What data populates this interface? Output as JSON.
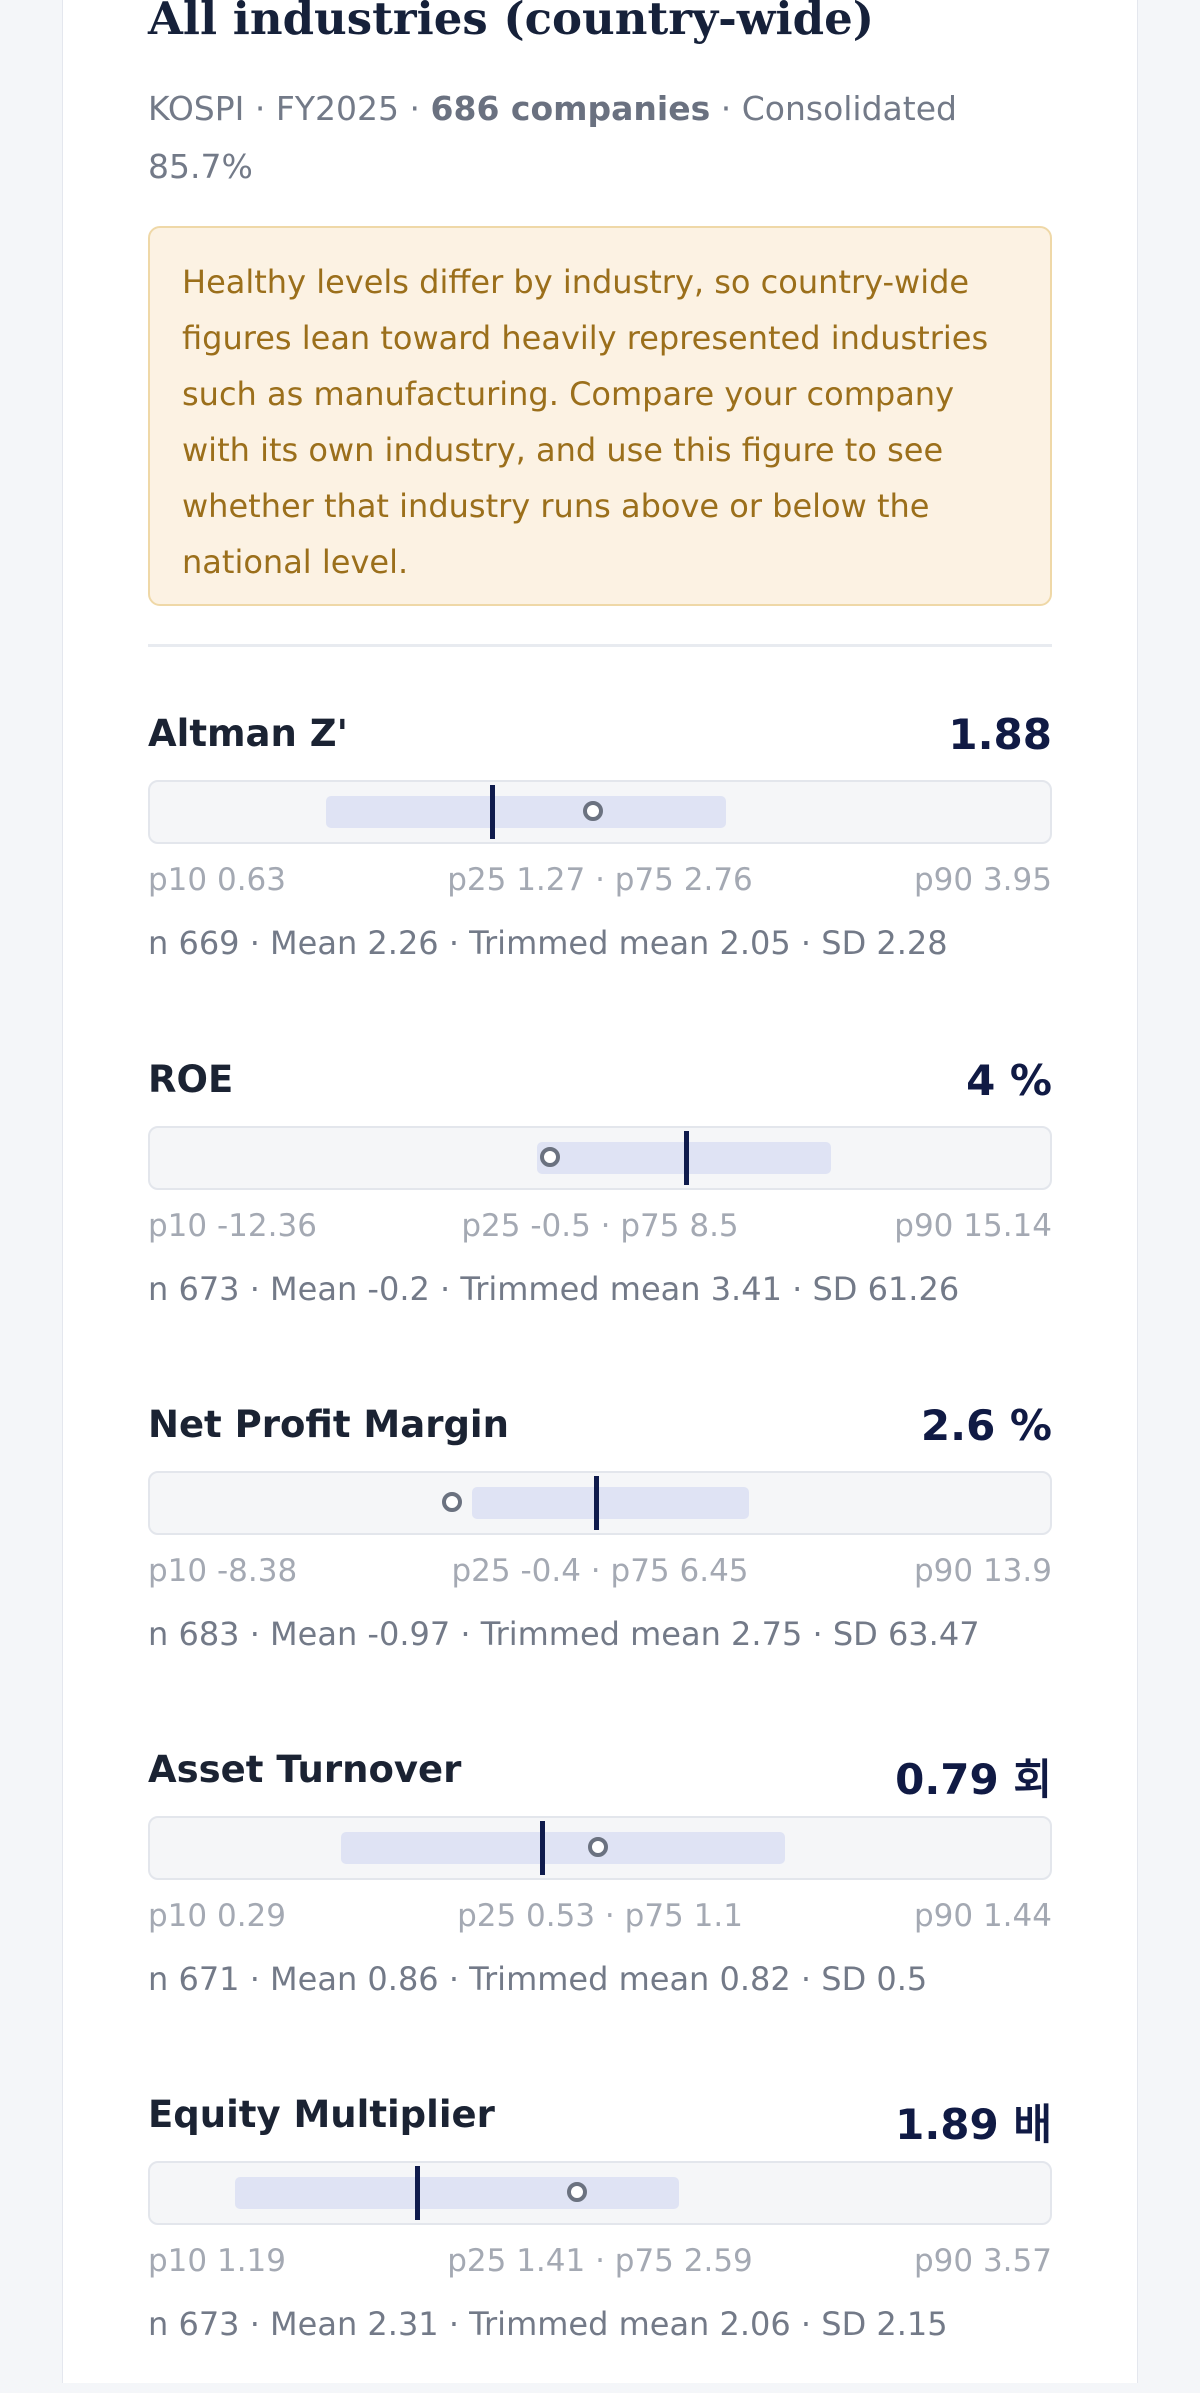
{
  "header": {
    "title": "All industries (country-wide)",
    "market": "KOSPI",
    "fiscal_year": "FY2025",
    "companies": "686 companies",
    "basis": "Consolidated",
    "coverage": "85.7%",
    "separator": "·"
  },
  "notice": {
    "text": "Healthy levels differ by industry, so country-wide figures lean toward heavily represented industries such as manufacturing. Compare your company with its own industry, and use this figure to see whether that industry runs above or below the national level."
  },
  "colors": {
    "accent_dark": "#0f1b4d",
    "iqr_fill": "#dfe3f4",
    "notice_bg": "#fcf2e3",
    "notice_text": "#9b6f1b"
  },
  "metrics": [
    {
      "name": "Altman Z'",
      "value_text": "1.88",
      "p10": "p10 0.63",
      "iqr": "p25 1.27 · p75 2.76",
      "p90": "p90 3.95",
      "stats": "n 669 · Mean 2.26 · Trimmed mean 2.05 · SD 2.28",
      "scale": {
        "iqr_start": 0.195,
        "iqr_end": 0.64,
        "median": 0.38,
        "mean": 0.49
      }
    },
    {
      "name": "ROE",
      "value_text": "4 %",
      "p10": "p10 -12.36",
      "iqr": "p25 -0.5 · p75 8.5",
      "p90": "p90 15.14",
      "stats": "n 673 · Mean -0.2 · Trimmed mean 3.41 · SD 61.26",
      "scale": {
        "iqr_start": 0.43,
        "iqr_end": 0.757,
        "median": 0.596,
        "mean": 0.442
      }
    },
    {
      "name": "Net Profit Margin",
      "value_text": "2.6 %",
      "p10": "p10 -8.38",
      "iqr": "p25 -0.4 · p75 6.45",
      "p90": "p90 13.9",
      "stats": "n 683 · Mean -0.97 · Trimmed mean 2.75 · SD 63.47",
      "scale": {
        "iqr_start": 0.358,
        "iqr_end": 0.666,
        "median": 0.496,
        "mean": 0.333
      }
    },
    {
      "name": "Asset Turnover",
      "value_text": "0.79 회",
      "p10": "p10 0.29",
      "iqr": "p25 0.53 · p75 1.1",
      "p90": "p90 1.44",
      "stats": "n 671 · Mean 0.86 · Trimmed mean 0.82 · SD 0.5",
      "scale": {
        "iqr_start": 0.212,
        "iqr_end": 0.706,
        "median": 0.436,
        "mean": 0.496
      }
    },
    {
      "name": "Equity Multiplier",
      "value_text": "1.89 배",
      "p10": "p10 1.19",
      "iqr": "p25 1.41 · p75 2.59",
      "p90": "p90 3.57",
      "stats": "n 673 · Mean 2.31 · Trimmed mean 2.06 · SD 2.15",
      "scale": {
        "iqr_start": 0.094,
        "iqr_end": 0.588,
        "median": 0.297,
        "mean": 0.472
      }
    }
  ]
}
